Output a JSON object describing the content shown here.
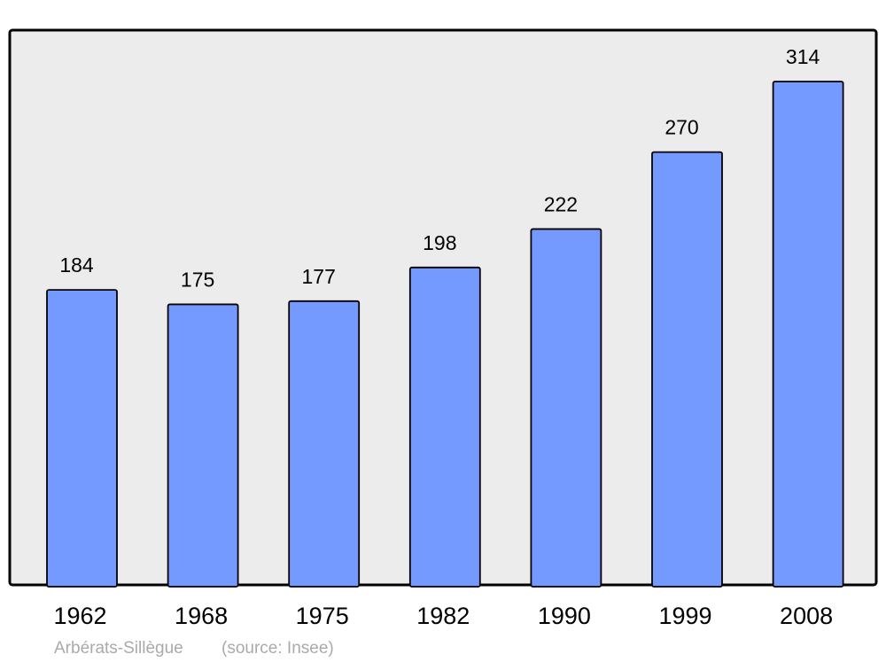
{
  "chart_data": {
    "type": "bar",
    "title": "",
    "xlabel": "",
    "ylabel": "",
    "categories": [
      "1962",
      "1968",
      "1975",
      "1982",
      "1990",
      "1999",
      "2008"
    ],
    "values": [
      184,
      175,
      177,
      198,
      222,
      270,
      314
    ],
    "ylim": [
      0,
      346
    ],
    "grid": false,
    "data_labels": true,
    "colors": {
      "bar": "#7499ff",
      "background": "#ececec",
      "border": "#000000"
    }
  },
  "caption": {
    "place": "Arbérats-Sillègue",
    "source": "(source: Insee)"
  }
}
